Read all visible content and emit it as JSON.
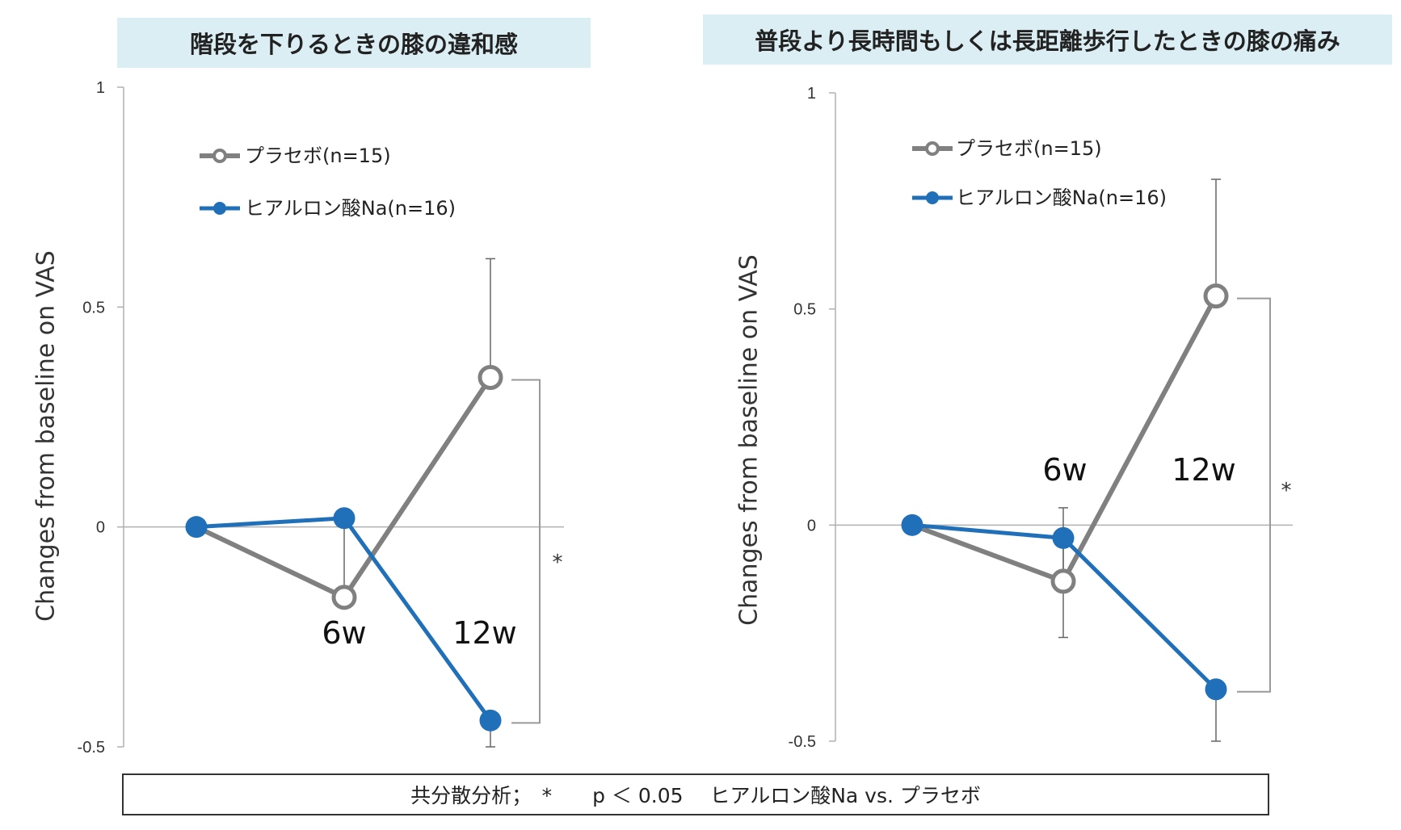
{
  "footnote": "共分散分析；　*　　p ＜ 0.05　 ヒアルロン酸Na vs. プラセボ",
  "colors": {
    "placebo": "#808080",
    "hyaluronate": "#1f70b8",
    "title_bg": "#daeef3"
  },
  "chart_data": [
    {
      "type": "line",
      "title": "階段を下りるときの膝の違和感",
      "ylabel": "Changes from baseline on VAS",
      "ylim": [
        -0.5,
        1
      ],
      "y_ticks": [
        "1",
        "0.5",
        "0",
        "-0.5"
      ],
      "x_labels": [
        "6w",
        "12w"
      ],
      "significance_marker": "*",
      "legend": {
        "placement": "top-left"
      },
      "series": [
        {
          "name": "プラセボ(n=15)",
          "marker": "open-circle",
          "values": [
            0,
            -0.16,
            0.34
          ],
          "error_upper": [
            null,
            null,
            0.61
          ]
        },
        {
          "name": "ヒアルロン酸Na(n=16)",
          "marker": "filled-circle",
          "values": [
            0,
            0.02,
            -0.44
          ],
          "error_lower": [
            null,
            -0.16,
            -0.5
          ]
        }
      ]
    },
    {
      "type": "line",
      "title": "普段より長時間もしくは長距離歩行したときの膝の痛み",
      "ylabel": "Changes from baseline on VAS",
      "ylim": [
        -0.5,
        1
      ],
      "y_ticks": [
        "1",
        "0.5",
        "0",
        "-0.5"
      ],
      "x_labels": [
        "6w",
        "12w"
      ],
      "significance_marker": "*",
      "legend": {
        "placement": "top-left"
      },
      "series": [
        {
          "name": "プラセボ(n=15)",
          "marker": "open-circle",
          "values": [
            0,
            -0.13,
            0.53
          ],
          "error_upper": [
            null,
            0.04,
            0.8
          ]
        },
        {
          "name": "ヒアルロン酸Na(n=16)",
          "marker": "filled-circle",
          "values": [
            0,
            -0.03,
            -0.38
          ],
          "error_lower": [
            null,
            -0.26,
            -0.5
          ]
        }
      ]
    }
  ]
}
